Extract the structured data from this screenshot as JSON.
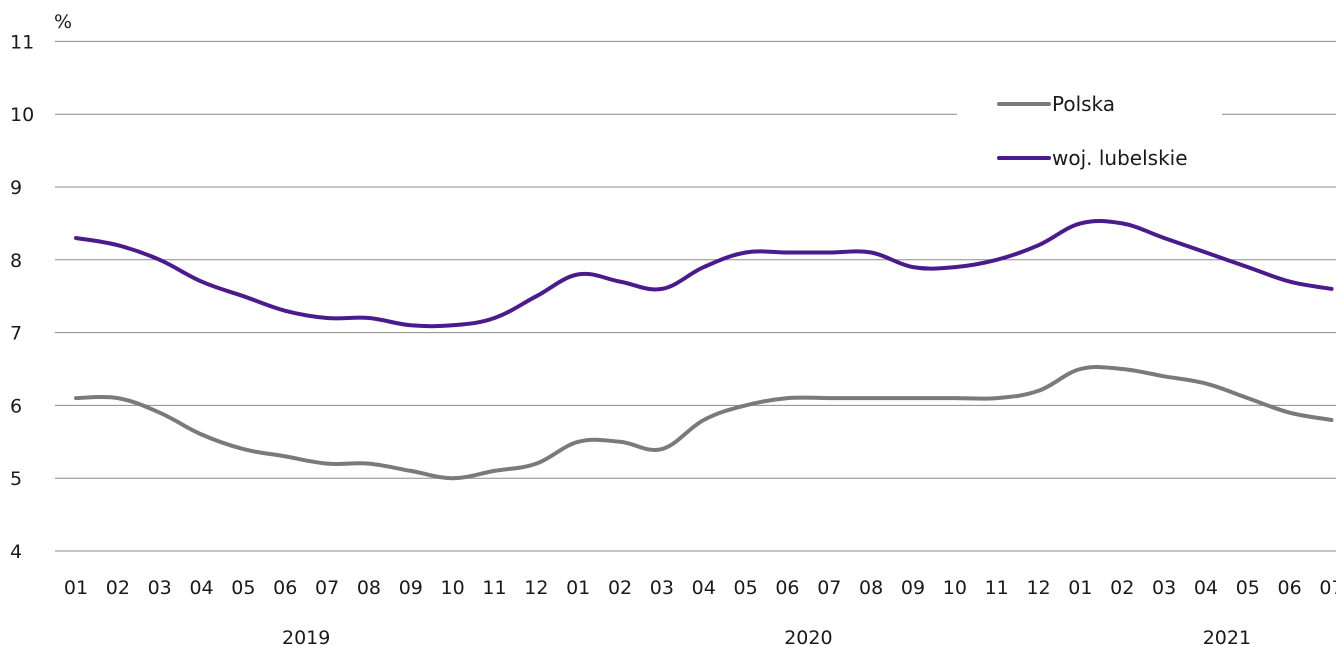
{
  "chart_data": {
    "type": "line",
    "unit_label": "%",
    "ylim": [
      4,
      11
    ],
    "yticks": [
      "4",
      "5",
      "6",
      "7",
      "8",
      "9",
      "10",
      "11"
    ],
    "grid": true,
    "legend_position": "top-right",
    "categories": [
      "01",
      "02",
      "03",
      "04",
      "05",
      "06",
      "07",
      "08",
      "09",
      "10",
      "11",
      "12",
      "01",
      "02",
      "03",
      "04",
      "05",
      "06",
      "07",
      "08",
      "09",
      "10",
      "11",
      "12",
      "01",
      "02",
      "03",
      "04",
      "05",
      "06",
      "07"
    ],
    "year_labels": [
      {
        "label": "2019",
        "center_index": 5.5
      },
      {
        "label": "2020",
        "center_index": 17.5
      },
      {
        "label": "2021",
        "center_index": 27.5
      }
    ],
    "series": [
      {
        "name": "Polska",
        "color": "#7a7a7a",
        "values": [
          6.1,
          6.1,
          5.9,
          5.6,
          5.4,
          5.3,
          5.2,
          5.2,
          5.1,
          5.0,
          5.1,
          5.2,
          5.5,
          5.5,
          5.4,
          5.8,
          6.0,
          6.1,
          6.1,
          6.1,
          6.1,
          6.1,
          6.1,
          6.2,
          6.5,
          6.5,
          6.4,
          6.3,
          6.1,
          5.9,
          5.8
        ]
      },
      {
        "name": "woj. lubelskie",
        "color": "#4b1a8c",
        "values": [
          8.3,
          8.2,
          8.0,
          7.7,
          7.5,
          7.3,
          7.2,
          7.2,
          7.1,
          7.1,
          7.2,
          7.5,
          7.8,
          7.7,
          7.6,
          7.9,
          8.1,
          8.1,
          8.1,
          8.1,
          7.9,
          7.9,
          8.0,
          8.2,
          8.5,
          8.5,
          8.3,
          8.1,
          7.9,
          7.7,
          7.6
        ]
      }
    ]
  }
}
